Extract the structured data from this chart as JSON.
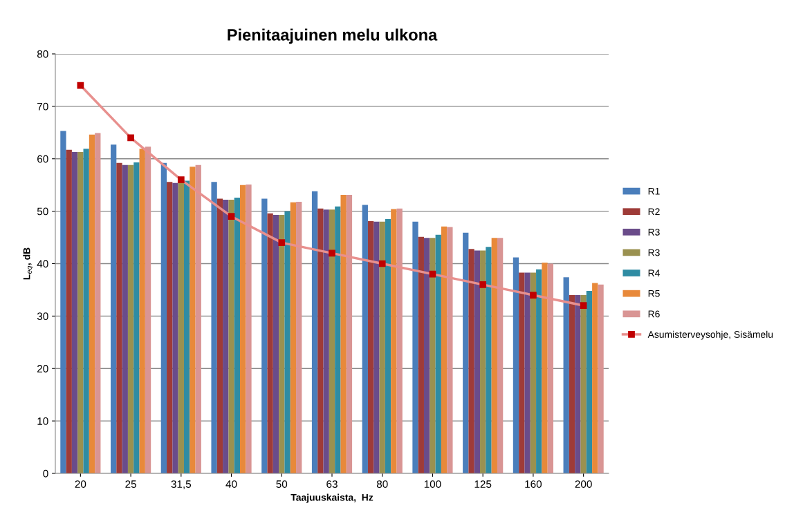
{
  "chart_data": {
    "type": "bar",
    "title": "Pienitaajuinen melu ulkona",
    "xlabel": "Taajuuskaista,  Hz",
    "ylabel": "L$_{eq}$, dB",
    "categories": [
      "20",
      "25",
      "31,5",
      "40",
      "50",
      "63",
      "80",
      "100",
      "125",
      "160",
      "200"
    ],
    "series": [
      {
        "name": "R1",
        "color": "#4a7ebb",
        "values": [
          65.3,
          62.7,
          59.2,
          55.6,
          52.4,
          53.8,
          51.2,
          48.0,
          45.9,
          41.2,
          37.4
        ]
      },
      {
        "name": "R2",
        "color": "#9e3b38",
        "values": [
          61.7,
          59.2,
          55.6,
          52.4,
          49.6,
          50.5,
          48.1,
          45.1,
          42.8,
          38.3,
          34.0
        ]
      },
      {
        "name": "R3",
        "color": "#6a4c8a",
        "values": [
          61.3,
          58.8,
          55.4,
          52.2,
          49.3,
          50.3,
          48.0,
          44.9,
          42.5,
          38.3,
          34.0
        ]
      },
      {
        "name": "R3",
        "color": "#9a9150",
        "values": [
          61.3,
          58.8,
          55.4,
          52.2,
          49.3,
          50.3,
          48.0,
          44.9,
          42.5,
          38.3,
          34.0
        ]
      },
      {
        "name": "R4",
        "color": "#2f8ca3",
        "values": [
          61.9,
          59.3,
          55.8,
          52.6,
          50.0,
          50.9,
          48.5,
          45.5,
          43.2,
          38.9,
          34.8
        ]
      },
      {
        "name": "R5",
        "color": "#e8893a",
        "values": [
          64.6,
          61.9,
          58.5,
          55.0,
          51.7,
          53.1,
          50.4,
          47.1,
          44.9,
          40.2,
          36.3
        ]
      },
      {
        "name": "R6",
        "color": "#d99594",
        "values": [
          64.9,
          62.3,
          58.8,
          55.1,
          51.8,
          53.1,
          50.5,
          47.0,
          44.9,
          40.0,
          36.0
        ]
      },
      {
        "name": "Asumisterveysohje, Sisämelu",
        "type": "line",
        "color": "#e8908e",
        "marker": "square",
        "values": [
          74,
          64,
          56,
          49,
          44,
          42,
          40,
          38,
          36,
          34,
          32
        ]
      }
    ],
    "ylim": [
      0,
      80
    ],
    "yticks": [
      0,
      10,
      20,
      30,
      40,
      50,
      60,
      70,
      80
    ],
    "grid": "y",
    "legend": "right"
  }
}
